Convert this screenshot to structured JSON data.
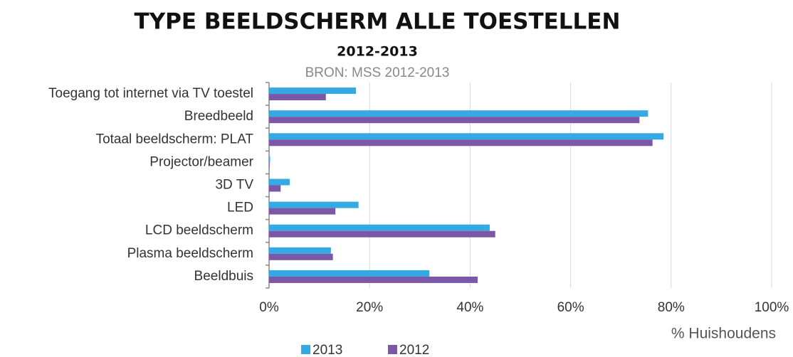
{
  "chart_data": {
    "type": "hbar",
    "title": "TYPE BEELDSCHERM ALLE TOESTELLEN",
    "subtitle": "2012-2013",
    "source": "BRON: MSS 2012-2013",
    "x_label": "% Huishoudens",
    "categories": [
      "Toegang tot internet via TV toestel",
      "Breedbeeld",
      "Totaal beeldscherm: PLAT",
      "Projector/beamer",
      "3D TV",
      "LED",
      "LCD beeldscherm",
      "Plasma beeldscherm",
      "Beeldbuis"
    ],
    "series": [
      {
        "name": "2013",
        "color": "#35a9e1",
        "values": [
          17.3,
          75.4,
          78.5,
          0.2,
          4.1,
          17.8,
          43.9,
          12.3,
          31.9
        ]
      },
      {
        "name": "2012",
        "color": "#7b57a8",
        "values": [
          11.3,
          73.7,
          76.3,
          0.1,
          2.3,
          13.2,
          45.0,
          12.7,
          41.5
        ]
      }
    ],
    "xlim": [
      0,
      100
    ],
    "xticks": [
      {
        "value": 0,
        "label": "0%"
      },
      {
        "value": 20,
        "label": "20%"
      },
      {
        "value": 40,
        "label": "40%"
      },
      {
        "value": 60,
        "label": "60%"
      },
      {
        "value": 80,
        "label": "80%"
      },
      {
        "value": 100,
        "label": "100%"
      }
    ],
    "grid": true
  }
}
